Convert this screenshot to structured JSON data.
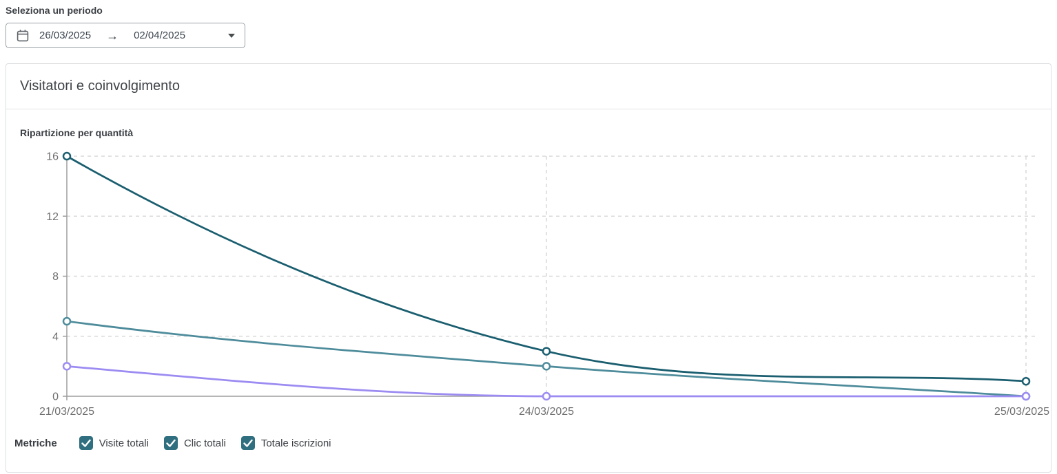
{
  "period_picker": {
    "label": "Seleziona un periodo",
    "start_date": "26/03/2025",
    "end_date": "02/04/2025",
    "arrow": "→"
  },
  "card": {
    "title": "Visitatori e coinvolgimento",
    "subtitle": "Ripartizione per quantità"
  },
  "metrics": {
    "label": "Metriche",
    "checkbox_color": "#2f6f7f",
    "items": [
      {
        "label": "Visite totali",
        "checked": true
      },
      {
        "label": "Clic totali",
        "checked": true
      },
      {
        "label": "Totale iscrizioni",
        "checked": true
      }
    ]
  },
  "chart_data": {
    "type": "line",
    "title": "Ripartizione per quantità",
    "categories": [
      "21/03/2025",
      "24/03/2025",
      "25/03/2025"
    ],
    "series": [
      {
        "name": "Visite totali",
        "color": "#1a5e6f",
        "values": [
          16,
          3,
          1
        ]
      },
      {
        "name": "Clic totali",
        "color": "#4e8c9b",
        "values": [
          5,
          2,
          0
        ]
      },
      {
        "name": "Totale iscrizioni",
        "color": "#9c8cf2",
        "values": [
          2,
          0,
          0
        ]
      }
    ],
    "ylim": [
      0,
      16
    ],
    "yticks": [
      0,
      4,
      8,
      12,
      16
    ],
    "grid": "dashed",
    "legend_position": "bottom-checkboxes",
    "colors": {
      "axis": "#9e9e9e",
      "grid": "#d9d9d9",
      "tick_labels": "#6f6f6f"
    }
  }
}
